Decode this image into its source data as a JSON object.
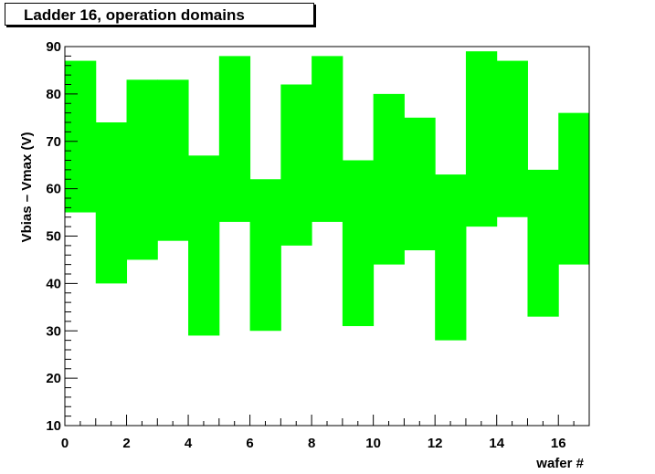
{
  "chart_data": {
    "type": "bar",
    "subtype": "floating-range",
    "title": "Ladder 16, operation domains",
    "xlabel": "wafer #",
    "ylabel": "Vbias – Vmax (V)",
    "xlim": [
      0,
      17
    ],
    "ylim": [
      10,
      90
    ],
    "xticks": [
      0,
      2,
      4,
      6,
      8,
      10,
      12,
      14,
      16
    ],
    "yticks": [
      10,
      20,
      30,
      40,
      50,
      60,
      70,
      80,
      90
    ],
    "grid": false,
    "color": "#00ff00",
    "bins": [
      {
        "x0": 0,
        "x1": 1,
        "low": 55,
        "high": 87
      },
      {
        "x0": 1,
        "x1": 2,
        "low": 40,
        "high": 74
      },
      {
        "x0": 2,
        "x1": 3,
        "low": 45,
        "high": 83
      },
      {
        "x0": 3,
        "x1": 4,
        "low": 49,
        "high": 83
      },
      {
        "x0": 4,
        "x1": 5,
        "low": 29,
        "high": 67
      },
      {
        "x0": 5,
        "x1": 6,
        "low": 53,
        "high": 88
      },
      {
        "x0": 6,
        "x1": 7,
        "low": 30,
        "high": 62
      },
      {
        "x0": 7,
        "x1": 8,
        "low": 48,
        "high": 82
      },
      {
        "x0": 8,
        "x1": 9,
        "low": 53,
        "high": 88
      },
      {
        "x0": 9,
        "x1": 10,
        "low": 31,
        "high": 66
      },
      {
        "x0": 10,
        "x1": 11,
        "low": 44,
        "high": 80
      },
      {
        "x0": 11,
        "x1": 12,
        "low": 47,
        "high": 75
      },
      {
        "x0": 12,
        "x1": 13,
        "low": 28,
        "high": 63
      },
      {
        "x0": 13,
        "x1": 14,
        "low": 52,
        "high": 89
      },
      {
        "x0": 14,
        "x1": 15,
        "low": 54,
        "high": 87
      },
      {
        "x0": 15,
        "x1": 16,
        "low": 33,
        "high": 64
      },
      {
        "x0": 16,
        "x1": 17,
        "low": 44,
        "high": 76
      }
    ]
  }
}
